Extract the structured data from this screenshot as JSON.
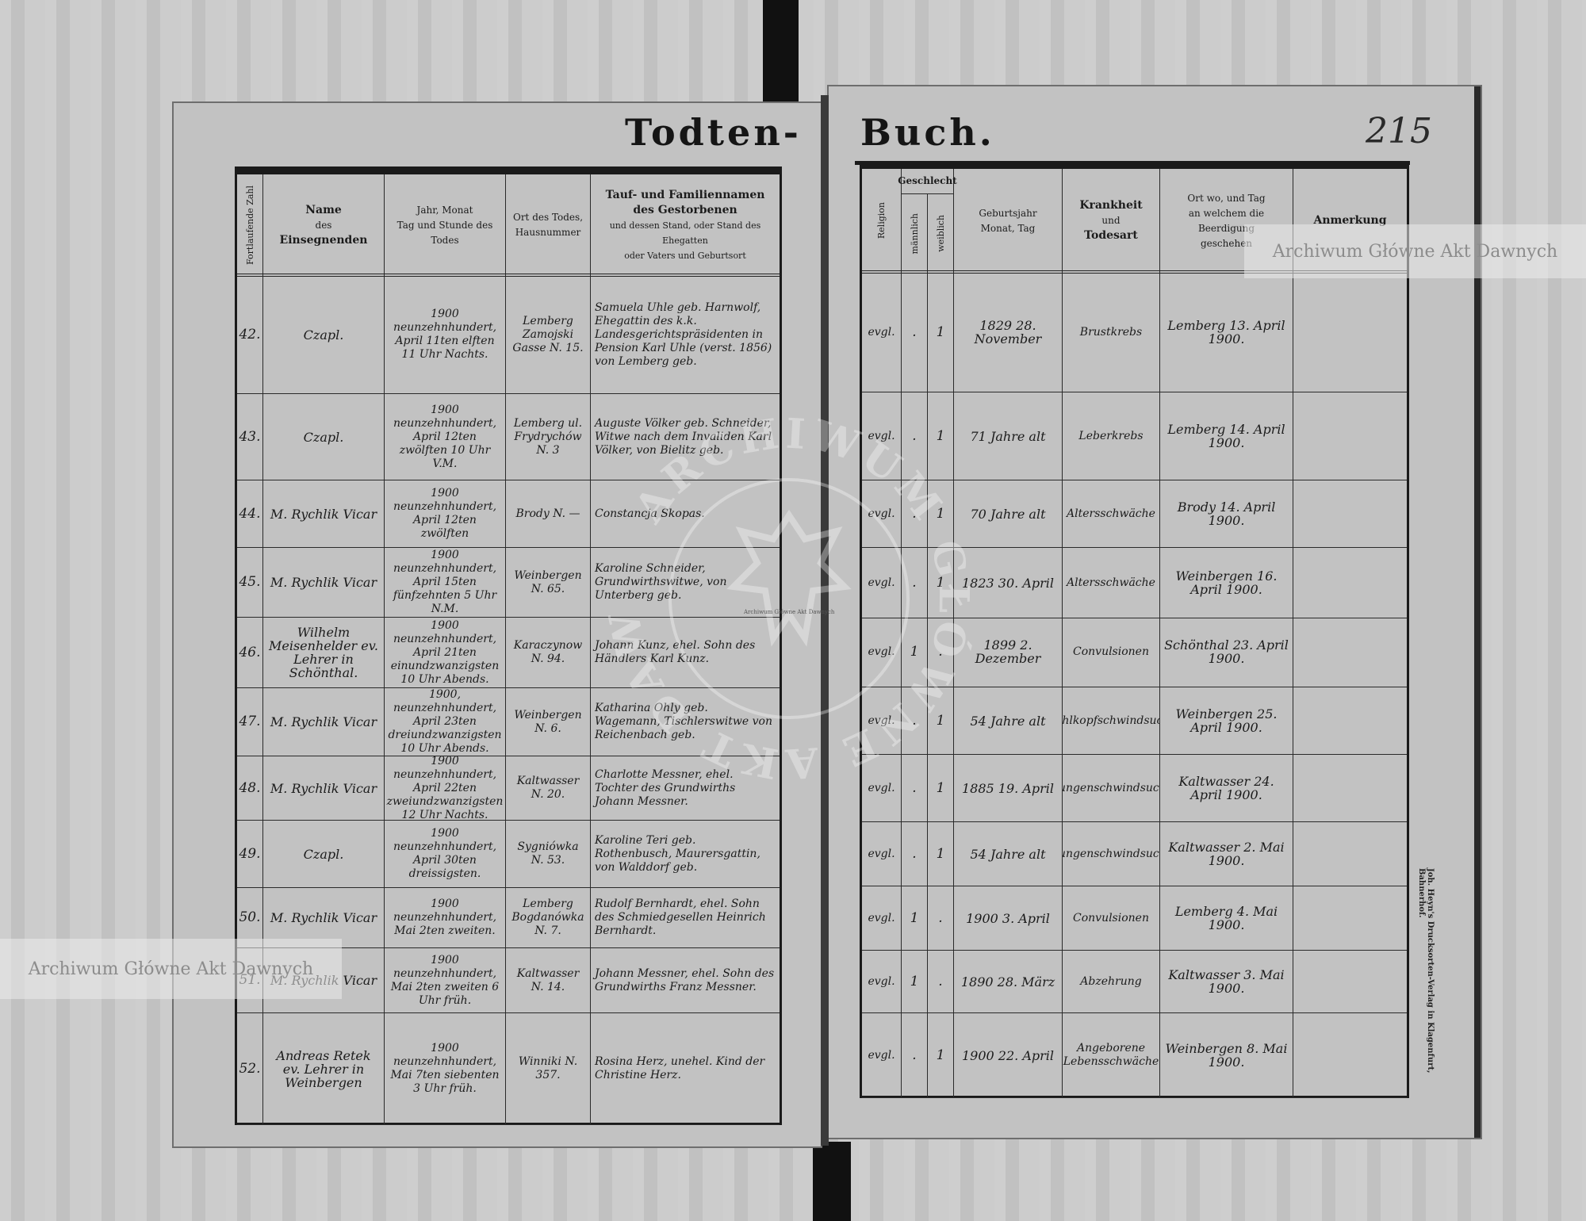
{
  "book": {
    "title_left": "Todten-",
    "title_right": "Buch.",
    "page_number": "215",
    "printer_imprint": "Joh. Heyn's Drucksorten-Verlag in Klagenfurt, Bahnerhof."
  },
  "watermarks": {
    "right_banner": "Archiwum Główne Akt Dawnych",
    "left_banner": "Archiwum Główne Akt Dawnych",
    "center_small": "Archiwum Główne Akt Dawnych",
    "stamp_text": "ARCHIWUM GŁÓWNE AKT DAWNYCH"
  },
  "colors": {
    "paper": "#c2c2c2",
    "ink": "#1b1b1b",
    "binding": "#111111"
  },
  "left_headers": {
    "number": "Fortlaufende Zahl",
    "officiant": [
      "Name",
      "des",
      "Einsegnenden"
    ],
    "date": [
      "Jahr, Monat",
      "Tag und Stunde des",
      "Todes"
    ],
    "place": [
      "Ort des Todes,",
      "Hausnummer"
    ],
    "deceased": [
      "Tauf- und Familiennamen",
      "des Gestorbenen",
      "und dessen Stand, oder Stand des Ehegatten",
      "oder Vaters und Geburtsort"
    ]
  },
  "right_headers": {
    "religion": "Religion",
    "sex": "Geschlecht",
    "male": "männlich",
    "female": "weiblich",
    "birth": [
      "Geburtsjahr",
      "Monat, Tag"
    ],
    "cause": [
      "Krankheit",
      "und",
      "Todesart"
    ],
    "burial": [
      "Ort wo, und Tag",
      "an welchem die Beerdigung",
      "geschehen"
    ],
    "remarks": "Anmerkung"
  },
  "entries": [
    {
      "number": "42.",
      "officiant": "Czapl.",
      "date": "1900 neunzehnhundert, April 11ten elften 11 Uhr Nachts.",
      "place": "Lemberg Zamojski Gasse N. 15.",
      "deceased": "Samuela Uhle geb. Harnwolf, Ehegattin des k.k. Landesgerichtspräsidenten in Pension Karl Uhle (verst. 1856) von Lemberg geb.",
      "religion": "evgl.",
      "male": ".",
      "female": "1",
      "birth": "1829 28. November",
      "cause": "Brustkrebs",
      "burial": "Lemberg 13. April 1900.",
      "remarks": ""
    },
    {
      "number": "43.",
      "officiant": "Czapl.",
      "date": "1900 neunzehnhundert, April 12ten zwölften 10 Uhr V.M.",
      "place": "Lemberg ul. Frydrychów N. 3",
      "deceased": "Auguste Völker geb. Schneider, Witwe nach dem Invaliden Karl Völker, von Bielitz geb.",
      "religion": "evgl.",
      "male": ".",
      "female": "1",
      "birth": "71 Jahre alt",
      "cause": "Leberkrebs",
      "burial": "Lemberg 14. April 1900.",
      "remarks": ""
    },
    {
      "number": "44.",
      "officiant": "M. Rychlik Vicar",
      "date": "1900 neunzehnhundert, April 12ten zwölften",
      "place": "Brody N. —",
      "deceased": "Constancja Skopas.",
      "religion": "evgl.",
      "male": ".",
      "female": "1",
      "birth": "70 Jahre alt",
      "cause": "Altersschwäche",
      "burial": "Brody 14. April 1900.",
      "remarks": ""
    },
    {
      "number": "45.",
      "officiant": "M. Rychlik Vicar",
      "date": "1900 neunzehnhundert, April 15ten fünfzehnten 5 Uhr N.M.",
      "place": "Weinbergen N. 65.",
      "deceased": "Karoline Schneider, Grundwirthswitwe, von Unterberg geb.",
      "religion": "evgl.",
      "male": ".",
      "female": "1",
      "birth": "1823 30. April",
      "cause": "Altersschwäche",
      "burial": "Weinbergen 16. April 1900.",
      "remarks": ""
    },
    {
      "number": "46.",
      "officiant": "Wilhelm Meisenhelder ev. Lehrer in Schönthal.",
      "date": "1900 neunzehnhundert, April 21ten einundzwanzigsten 10 Uhr Abends.",
      "place": "Karaczynow N. 94.",
      "deceased": "Johann Kunz, ehel. Sohn des Händlers Karl Kunz.",
      "religion": "evgl.",
      "male": "1",
      "female": ".",
      "birth": "1899 2. Dezember",
      "cause": "Convulsionen",
      "burial": "Schönthal 23. April 1900.",
      "remarks": ""
    },
    {
      "number": "47.",
      "officiant": "M. Rychlik Vicar",
      "date": "1900, neunzehnhundert, April 23ten dreiundzwanzigsten 10 Uhr Abends.",
      "place": "Weinbergen N. 6.",
      "deceased": "Katharina Ohly geb. Wagemann, Tischlerswitwe von Reichenbach geb.",
      "religion": "evgl.",
      "male": ".",
      "female": "1",
      "birth": "54 Jahre alt",
      "cause": "Kehlkopfschwindsucht",
      "burial": "Weinbergen 25. April 1900.",
      "remarks": ""
    },
    {
      "number": "48.",
      "officiant": "M. Rychlik Vicar",
      "date": "1900 neunzehnhundert, April 22ten zweiundzwanzigsten 12 Uhr Nachts.",
      "place": "Kaltwasser N. 20.",
      "deceased": "Charlotte Messner, ehel. Tochter des Grundwirths Johann Messner.",
      "religion": "evgl.",
      "male": ".",
      "female": "1",
      "birth": "1885 19. April",
      "cause": "Lungenschwindsucht",
      "burial": "Kaltwasser 24. April 1900.",
      "remarks": ""
    },
    {
      "number": "49.",
      "officiant": "Czapl.",
      "date": "1900 neunzehnhundert, April 30ten dreissigsten.",
      "place": "Sygniówka N. 53.",
      "deceased": "Karoline Teri geb. Rothenbusch, Maurersgattin, von Walddorf geb.",
      "religion": "evgl.",
      "male": ".",
      "female": "1",
      "birth": "54 Jahre alt",
      "cause": "Lungenschwindsucht",
      "burial": "Kaltwasser 2. Mai 1900.",
      "remarks": ""
    },
    {
      "number": "50.",
      "officiant": "M. Rychlik Vicar",
      "date": "1900 neunzehnhundert, Mai 2ten zweiten.",
      "place": "Lemberg Bogdanówka N. 7.",
      "deceased": "Rudolf Bernhardt, ehel. Sohn des Schmiedgesellen Heinrich Bernhardt.",
      "religion": "evgl.",
      "male": "1",
      "female": ".",
      "birth": "1900 3. April",
      "cause": "Convulsionen",
      "burial": "Lemberg 4. Mai 1900.",
      "remarks": ""
    },
    {
      "number": "51.",
      "officiant": "M. Rychlik Vicar",
      "date": "1900 neunzehnhundert, Mai 2ten zweiten 6 Uhr früh.",
      "place": "Kaltwasser N. 14.",
      "deceased": "Johann Messner, ehel. Sohn des Grundwirths Franz Messner.",
      "religion": "evgl.",
      "male": "1",
      "female": ".",
      "birth": "1890 28. März",
      "cause": "Abzehrung",
      "burial": "Kaltwasser 3. Mai 1900.",
      "remarks": ""
    },
    {
      "number": "52.",
      "officiant": "Andreas Retek ev. Lehrer in Weinbergen",
      "date": "1900 neunzehnhundert, Mai 7ten siebenten 3 Uhr früh.",
      "place": "Winniki N. 357.",
      "deceased": "Rosina Herz, unehel. Kind der Christine Herz.",
      "religion": "evgl.",
      "male": ".",
      "female": "1",
      "birth": "1900 22. April",
      "cause": "Angeborene Lebensschwäche",
      "burial": "Weinbergen 8. Mai 1900.",
      "remarks": ""
    }
  ]
}
